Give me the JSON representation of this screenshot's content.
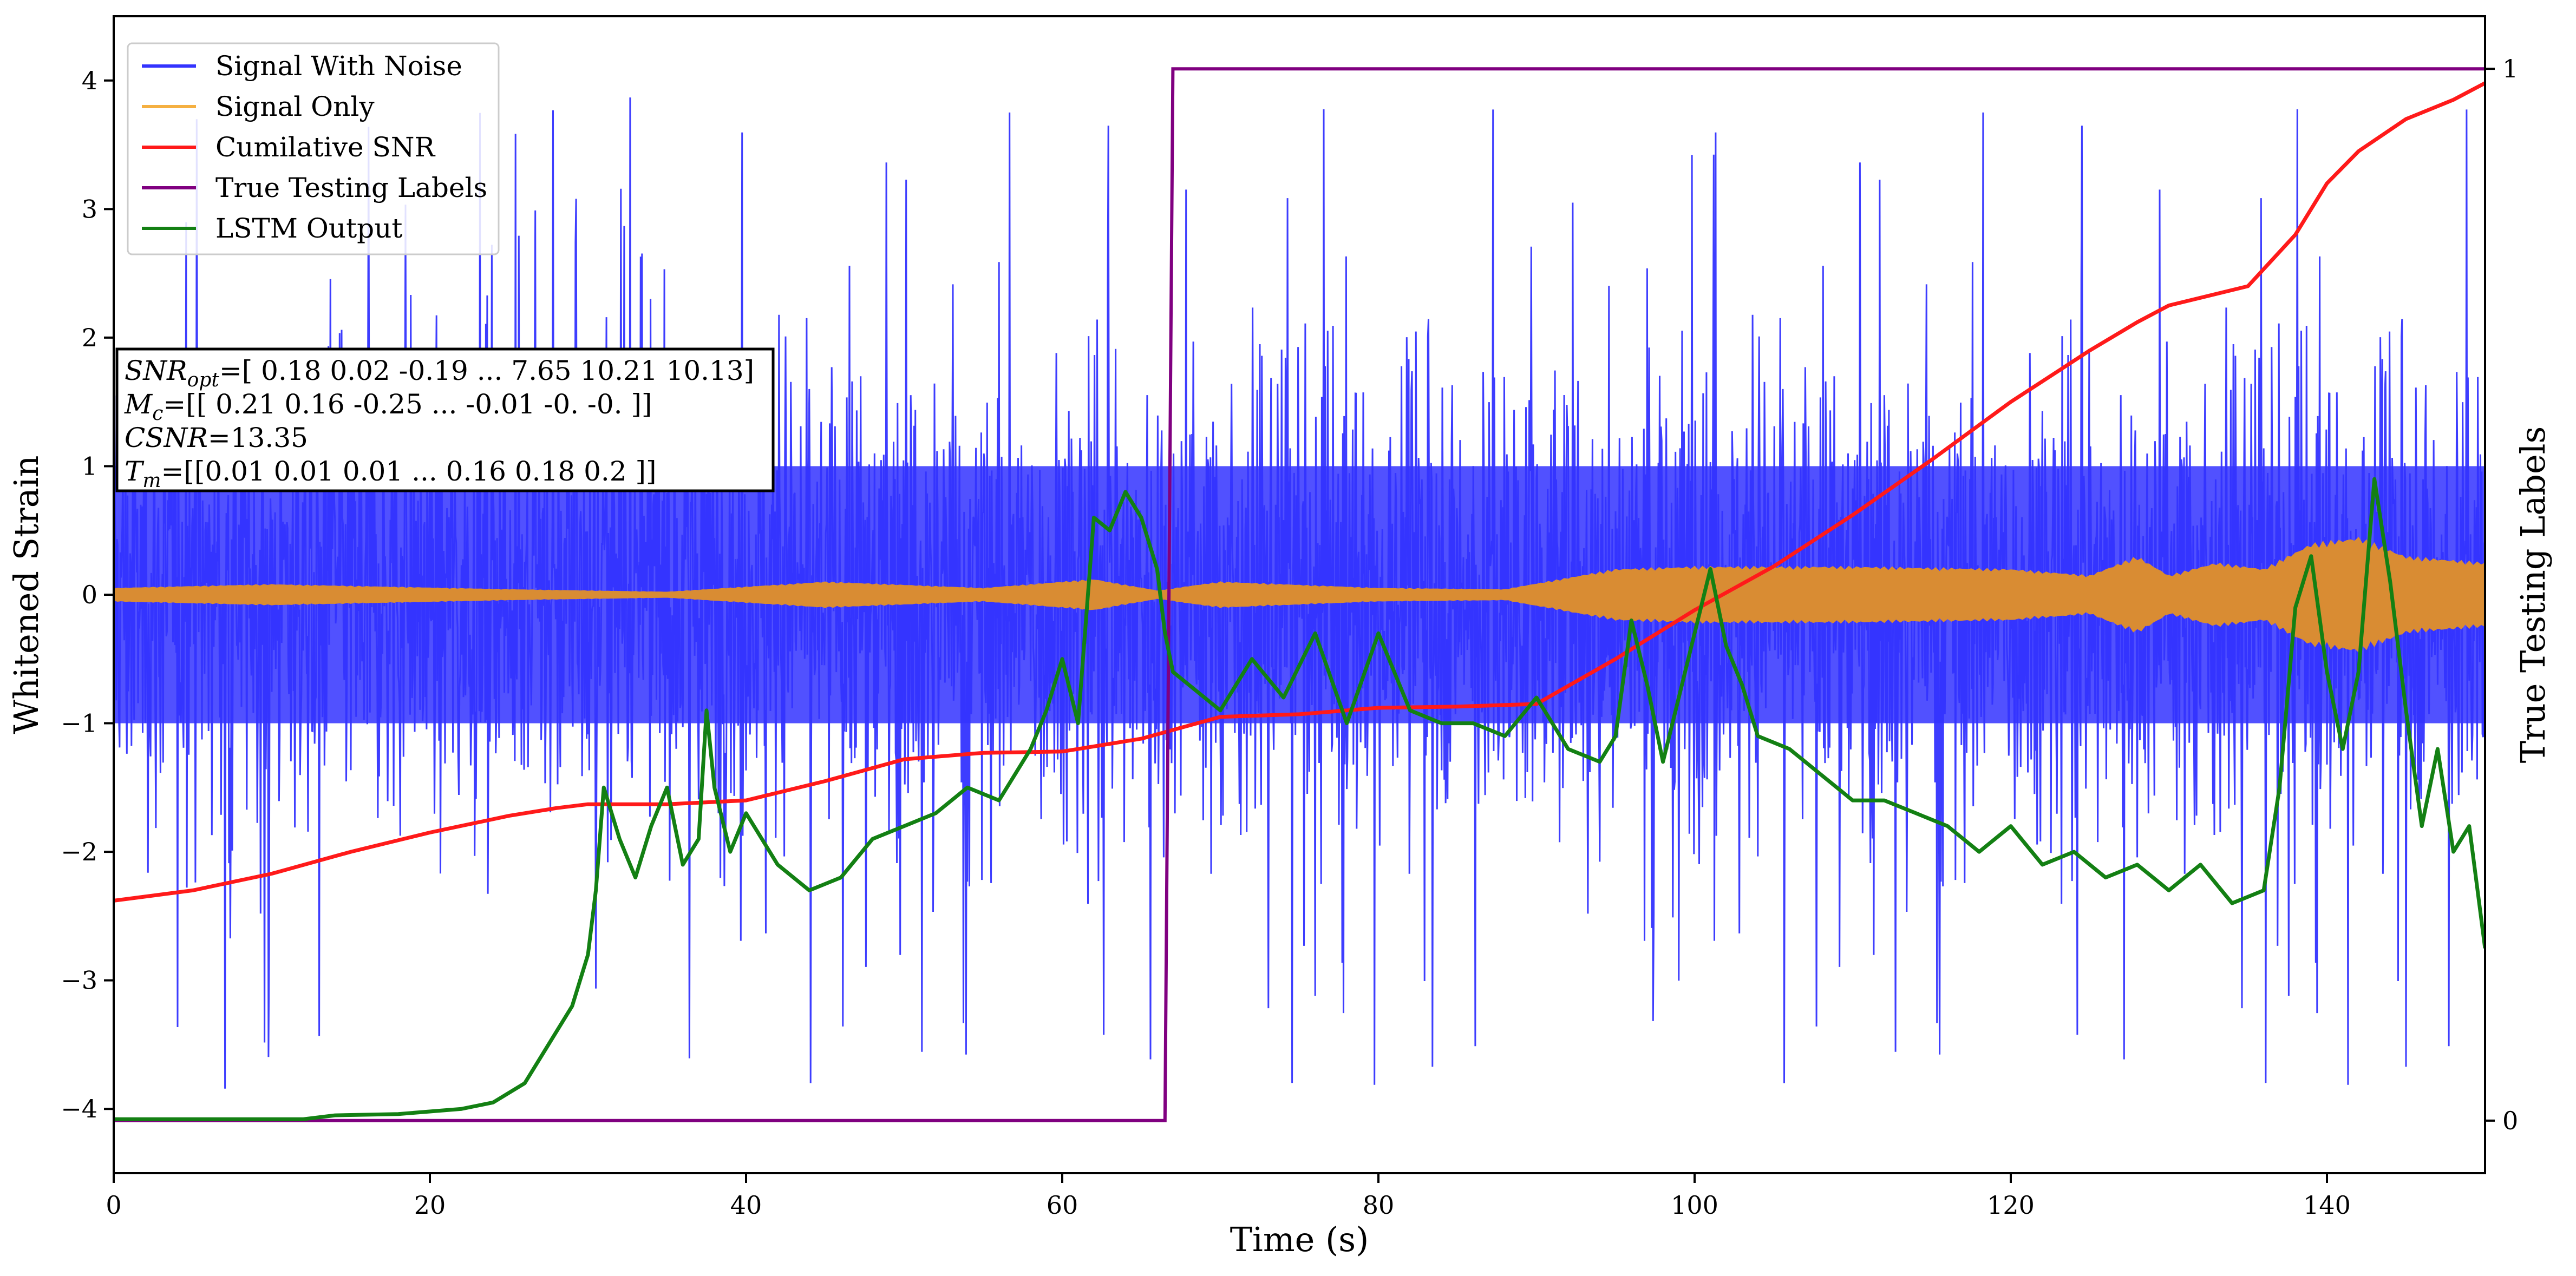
{
  "chart_data": {
    "type": "line",
    "title": "",
    "xlabel": "Time (s)",
    "ylabel": "Whitened Strain",
    "ylabel_right": "True Testing Labels",
    "xlim": [
      0,
      150
    ],
    "ylim": [
      -4.5,
      4.5
    ],
    "ylim_right": [
      -0.05,
      1.05
    ],
    "xticks": [
      0,
      20,
      40,
      60,
      80,
      100,
      120,
      140
    ],
    "xtick_labels": [
      "0",
      "20",
      "40",
      "60",
      "80",
      "100",
      "120",
      "140"
    ],
    "yticks": [
      -4,
      -3,
      -2,
      -1,
      0,
      1,
      2,
      3,
      4
    ],
    "ytick_labels": [
      "−4",
      "−3",
      "−2",
      "−1",
      "0",
      "1",
      "2",
      "3",
      "4"
    ],
    "yticks_right": [
      0,
      1
    ],
    "ytick_labels_right": [
      "0",
      "1"
    ],
    "grid": false,
    "legend_position": "top-left",
    "legend": [
      {
        "label": "Signal With Noise",
        "color": "#3333ff"
      },
      {
        "label": "Signal Only",
        "color": "#f5b041"
      },
      {
        "label": "Cumilative SNR",
        "color": "#ff1a1a"
      },
      {
        "label": "True Testing Labels",
        "color": "#800080"
      },
      {
        "label": "LSTM Output",
        "color": "#138013"
      }
    ],
    "series": [
      {
        "name": "Signal With Noise",
        "axis": "left",
        "color": "#3333ff",
        "style": "dense noise band",
        "band_core": [
          -1.0,
          1.0
        ],
        "spike_range": [
          -4.15,
          3.95
        ]
      },
      {
        "name": "Signal Only",
        "axis": "left",
        "color": "#d98c33",
        "style": "filled envelope",
        "x": [
          0,
          10,
          25,
          35,
          45,
          55,
          62,
          66,
          70,
          80,
          88,
          95,
          100,
          110,
          120,
          125,
          128,
          130,
          133,
          136,
          139,
          142,
          145,
          150
        ],
        "amplitude": [
          0.05,
          0.08,
          0.04,
          0.02,
          0.1,
          0.05,
          0.12,
          0.03,
          0.1,
          0.05,
          0.04,
          0.2,
          0.22,
          0.22,
          0.2,
          0.15,
          0.3,
          0.15,
          0.25,
          0.2,
          0.4,
          0.45,
          0.3,
          0.25
        ]
      },
      {
        "name": "Cumilative SNR",
        "axis": "left",
        "color": "#ff1a1a",
        "x": [
          0,
          5,
          10,
          15,
          20,
          25,
          28,
          30,
          35,
          40,
          45,
          50,
          55,
          60,
          65,
          70,
          75,
          80,
          85,
          90,
          95,
          100,
          105,
          110,
          115,
          120,
          125,
          128,
          130,
          135,
          138,
          140,
          142,
          145,
          148,
          150
        ],
        "y": [
          -2.38,
          -2.3,
          -2.17,
          -2.0,
          -1.85,
          -1.72,
          -1.66,
          -1.63,
          -1.63,
          -1.6,
          -1.45,
          -1.28,
          -1.23,
          -1.22,
          -1.12,
          -0.95,
          -0.93,
          -0.88,
          -0.87,
          -0.85,
          -0.5,
          -0.12,
          0.22,
          0.62,
          1.05,
          1.5,
          1.9,
          2.12,
          2.25,
          2.4,
          2.8,
          3.2,
          3.45,
          3.7,
          3.85,
          3.98
        ]
      },
      {
        "name": "True Testing Labels",
        "axis": "right",
        "color": "#800080",
        "x": [
          0,
          66.5,
          67,
          150
        ],
        "y": [
          0,
          0,
          1,
          1
        ]
      },
      {
        "name": "LSTM Output",
        "axis": "left",
        "color": "#138013",
        "x": [
          0,
          12,
          14,
          18,
          22,
          24,
          26,
          27,
          28,
          29,
          30,
          30.5,
          31,
          32,
          33,
          34,
          35,
          36,
          37,
          37.5,
          38,
          39,
          40,
          42,
          44,
          46,
          48,
          50,
          52,
          54,
          56,
          58,
          59,
          60,
          61,
          62,
          63,
          64,
          65,
          66,
          66.5,
          67,
          68,
          70,
          72,
          74,
          76,
          78,
          80,
          82,
          84,
          86,
          88,
          90,
          92,
          94,
          95,
          96,
          97,
          98,
          100,
          101,
          102,
          103,
          104,
          106,
          108,
          110,
          112,
          114,
          116,
          118,
          120,
          122,
          124,
          126,
          128,
          130,
          132,
          134,
          136,
          137,
          138,
          139,
          140,
          141,
          142,
          143,
          144,
          145,
          146,
          147,
          148,
          149,
          150
        ],
        "y": [
          -4.08,
          -4.08,
          -4.05,
          -4.04,
          -4.0,
          -3.95,
          -3.8,
          -3.6,
          -3.4,
          -3.2,
          -2.8,
          -2.3,
          -1.5,
          -1.9,
          -2.2,
          -1.8,
          -1.5,
          -2.1,
          -1.9,
          -0.9,
          -1.5,
          -2.0,
          -1.7,
          -2.1,
          -2.3,
          -2.2,
          -1.9,
          -1.8,
          -1.7,
          -1.5,
          -1.6,
          -1.2,
          -0.9,
          -0.5,
          -1.0,
          0.6,
          0.5,
          0.8,
          0.6,
          0.2,
          -0.3,
          -0.6,
          -0.7,
          -0.9,
          -0.5,
          -0.8,
          -0.3,
          -1.0,
          -0.3,
          -0.9,
          -1.0,
          -1.0,
          -1.1,
          -0.8,
          -1.2,
          -1.3,
          -1.1,
          -0.2,
          -0.7,
          -1.3,
          -0.3,
          0.2,
          -0.4,
          -0.7,
          -1.1,
          -1.2,
          -1.4,
          -1.6,
          -1.6,
          -1.7,
          -1.8,
          -2.0,
          -1.8,
          -2.1,
          -2.0,
          -2.2,
          -2.1,
          -2.3,
          -2.1,
          -2.4,
          -2.3,
          -1.5,
          -0.1,
          0.3,
          -0.6,
          -1.2,
          -0.6,
          0.9,
          0.1,
          -0.9,
          -1.8,
          -1.2,
          -2.0,
          -1.8,
          -2.75
        ]
      }
    ],
    "annotation_box": [
      {
        "symbol": "SNR",
        "sub": "opt",
        "text": "=[ 0.18  0.02 -0.19 ...  7.65 10.21 10.13]"
      },
      {
        "symbol": "M",
        "sub": "c",
        "text": "=[[ 0.21  0.16 -0.25 ... -0.01 -0.   -0.  ]]"
      },
      {
        "symbol": "CSNR",
        "sub": "",
        "text": "=13.35"
      },
      {
        "symbol": "T",
        "sub": "m",
        "text": "=[[0.01 0.01 0.01 ... 0.16 0.18 0.2 ]]"
      }
    ]
  }
}
